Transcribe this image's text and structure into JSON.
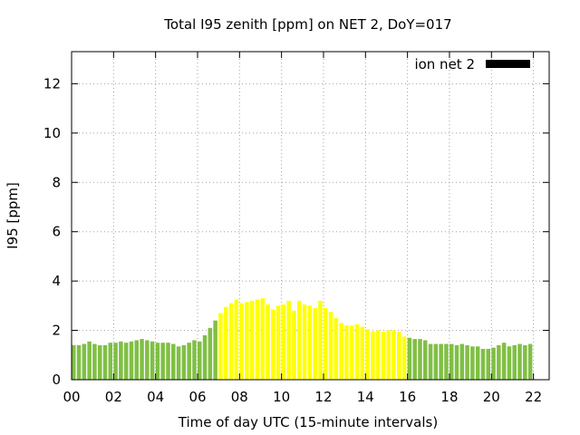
{
  "chart_data": {
    "type": "bar",
    "title": "Total I95 zenith [ppm] on NET 2, DoY=017",
    "xlabel": "Time of day UTC (15-minute intervals)",
    "ylabel": "I95 [ppm]",
    "xlim": [
      0,
      22.75
    ],
    "ylim": [
      0,
      13.3
    ],
    "x_ticks": [
      "00",
      "02",
      "04",
      "06",
      "08",
      "10",
      "12",
      "14",
      "16",
      "18",
      "20",
      "22"
    ],
    "y_ticks": [
      "0",
      "2",
      "4",
      "6",
      "8",
      "10",
      "12"
    ],
    "grid": true,
    "legend_position": "top-right",
    "series": [
      {
        "name": "ion net 2",
        "legend_color": "#000000",
        "interval_hours": 0.25,
        "x_start": 0,
        "values": [
          1.4,
          1.4,
          1.45,
          1.55,
          1.45,
          1.4,
          1.4,
          1.5,
          1.5,
          1.55,
          1.5,
          1.55,
          1.6,
          1.65,
          1.6,
          1.55,
          1.5,
          1.5,
          1.5,
          1.45,
          1.35,
          1.4,
          1.5,
          1.6,
          1.55,
          1.8,
          2.1,
          2.4,
          2.7,
          2.95,
          3.1,
          3.25,
          3.1,
          3.15,
          3.2,
          3.25,
          3.3,
          3.05,
          2.85,
          3.0,
          3.05,
          3.2,
          2.8,
          3.2,
          3.05,
          3.0,
          2.9,
          3.2,
          2.9,
          2.75,
          2.5,
          2.3,
          2.2,
          2.2,
          2.25,
          2.15,
          2.05,
          1.95,
          2.0,
          1.95,
          2.0,
          2.0,
          1.95,
          1.75,
          1.7,
          1.65,
          1.65,
          1.6,
          1.45,
          1.45,
          1.45,
          1.45,
          1.45,
          1.4,
          1.45,
          1.4,
          1.35,
          1.35,
          1.25,
          1.25,
          1.3,
          1.4,
          1.5,
          1.35,
          1.4,
          1.45,
          1.4,
          1.45
        ],
        "color_levels": [
          0,
          0,
          0,
          0,
          0,
          0,
          0,
          0,
          0,
          0,
          0,
          0,
          0,
          0,
          0,
          0,
          0,
          0,
          0,
          0,
          0,
          0,
          0,
          0,
          0,
          0,
          0,
          0,
          1,
          1,
          1,
          1,
          1,
          1,
          1,
          1,
          1,
          1,
          1,
          1,
          1,
          1,
          1,
          1,
          1,
          1,
          1,
          1,
          1,
          1,
          1,
          1,
          1,
          1,
          1,
          1,
          1,
          1,
          1,
          1,
          1,
          1,
          1,
          1,
          0,
          0,
          0,
          0,
          0,
          0,
          0,
          0,
          0,
          0,
          0,
          0,
          0,
          0,
          0,
          0,
          0,
          0,
          0,
          0,
          0,
          0,
          0,
          0
        ]
      }
    ],
    "level_colors": [
      "#7dbe45",
      "#ffff00"
    ],
    "level_colors_fix": [
      "#80bf45",
      "#ffff00"
    ]
  }
}
